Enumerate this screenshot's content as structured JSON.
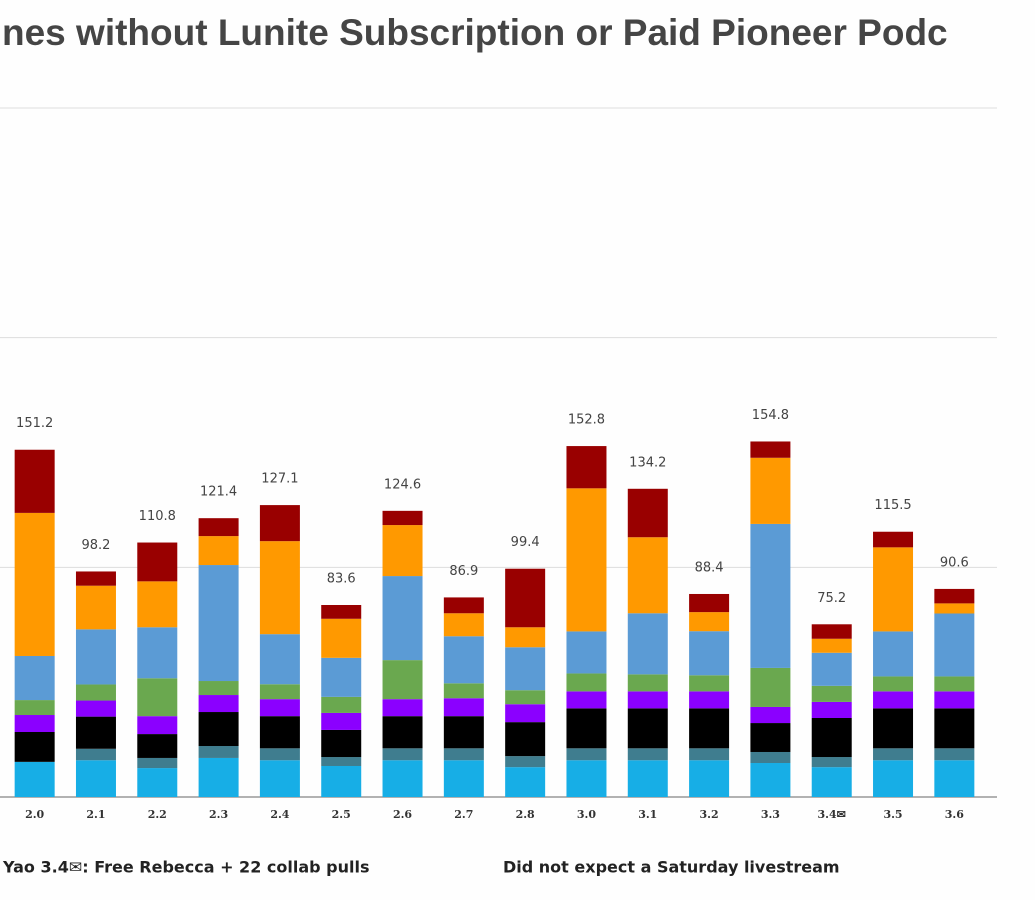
{
  "chart_data": {
    "type": "stacked_bar",
    "title": "nes without Lunite Subscription or Paid Pioneer Podc",
    "categories": [
      "2.0",
      "2.1",
      "2.2",
      "2.3",
      "2.4",
      "2.5",
      "2.6",
      "2.7",
      "2.8",
      "3.0",
      "3.1",
      "3.2",
      "3.3",
      "3.4✉",
      "3.5",
      "3.6"
    ],
    "totals": [
      151.2,
      98.2,
      110.8,
      121.4,
      127.1,
      83.6,
      124.6,
      86.9,
      99.4,
      152.8,
      134.2,
      88.4,
      154.8,
      75.2,
      115.5,
      90.6
    ],
    "series": [
      {
        "color": "#17aee6",
        "values": [
          15.3,
          16,
          12.6,
          17,
          16,
          13.5,
          16,
          16,
          13,
          16,
          16,
          16,
          14.8,
          13,
          16,
          16
        ]
      },
      {
        "color": "#3f7d8f",
        "values": [
          0,
          5,
          4.4,
          5.2,
          5.2,
          3.9,
          5.2,
          5.2,
          4.8,
          5.2,
          5.2,
          5.2,
          4.8,
          4.4,
          5.2,
          5.2
        ]
      },
      {
        "color": "#000000",
        "values": [
          13,
          14,
          10.4,
          14.8,
          14,
          11.8,
          14,
          14,
          14.8,
          17.4,
          17.4,
          17.4,
          12.6,
          17,
          17.4,
          17.4
        ]
      },
      {
        "color": "#8b00ff",
        "values": [
          7.4,
          7,
          7.8,
          7.4,
          7.4,
          7.4,
          7.4,
          7.8,
          7.8,
          7.4,
          7.4,
          7.4,
          7,
          7,
          7.4,
          7.4
        ]
      },
      {
        "color": "#6aa84f",
        "values": [
          6.5,
          7,
          16.5,
          6.1,
          6.5,
          7,
          17,
          6.5,
          6.1,
          7.8,
          7.4,
          7,
          17,
          7,
          6.5,
          6.5
        ]
      },
      {
        "color": "#5b9bd5",
        "values": [
          19.2,
          24,
          22.2,
          50.5,
          21.8,
          17,
          36.6,
          20.5,
          18.7,
          18.3,
          26.6,
          19.2,
          62.7,
          14.4,
          19.6,
          27.4
        ]
      },
      {
        "color": "#ff9900",
        "values": [
          62.3,
          19,
          20,
          12.6,
          40.5,
          17,
          22.2,
          10,
          8.7,
          62.3,
          33.1,
          8.3,
          28.8,
          6.1,
          36.6,
          4.4
        ]
      },
      {
        "color": "#990000",
        "values": [
          27.5,
          6.2,
          16.9,
          7.8,
          15.7,
          6,
          6.2,
          6.9,
          25.5,
          18.4,
          21.1,
          7.9,
          7.1,
          6.3,
          6.8,
          6.3
        ]
      }
    ],
    "ylim": [
      0,
      300
    ],
    "yticks": [
      0,
      100,
      200,
      300
    ],
    "grid": true,
    "notes": [
      "Yao   3.4✉: Free Rebecca + 22 collab pulls",
      "Did not expect a Saturday livestream"
    ]
  }
}
